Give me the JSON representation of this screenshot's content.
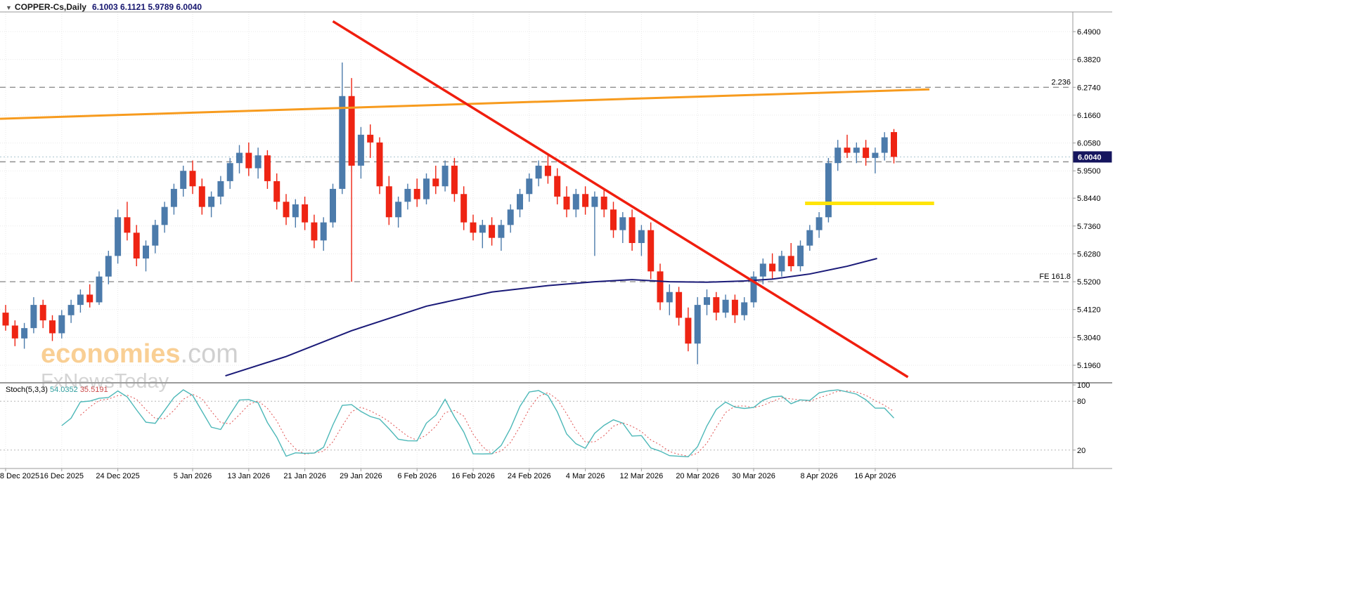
{
  "header": {
    "marker_glyph": "▼",
    "symbol_label": "COPPER-Cs,Daily",
    "ohlc_values": "6.1003 6.1121 5.9789 6.0040"
  },
  "watermark": {
    "brand": "economies",
    "brand_suffix": ".com",
    "subtitle": "FxNewsToday"
  },
  "price_axis": {
    "labels": [
      "6.4900",
      "6.3820",
      "6.2740",
      "6.1660",
      "6.0580",
      "5.9500",
      "5.8440",
      "5.7360",
      "5.6280",
      "5.5200",
      "5.4120",
      "5.3040",
      "5.1960"
    ],
    "current_price_label": "6.0040"
  },
  "indicator_axis": {
    "labels": [
      "100",
      "80",
      "20"
    ]
  },
  "annotations": {
    "fib_expansion_label": "2.236",
    "fe_level_label": "FE 161.8"
  },
  "indicator_label": {
    "name": "Stoch(5,3,3)",
    "main_value": "54.0352",
    "signal_value": "35.5191"
  },
  "colors": {
    "up": "#4c7bab",
    "down": "#ee2413",
    "trendline_red": "#f01e0e",
    "trendline_orange": "#f79b1e",
    "level_yellow": "#ffe408",
    "ma_navy": "#1a1a78",
    "stoch_main": "#4db8b8",
    "stoch_signal": "#e04f4f",
    "grid": "#e9e9e9",
    "frame": "#9a9a9a",
    "dashed_level": "#8f8f8f",
    "current_price_line": "#a9c4cf",
    "price_box_bg": "#15155e",
    "axis_text": "#000000",
    "watermark_brand": "#f5a93e",
    "watermark_gray": "#aaaaaa"
  },
  "chart_data": [
    {
      "type": "candlestick",
      "title": "COPPER-C Daily",
      "ylim": [
        5.13,
        6.57
      ],
      "grid": true,
      "current_price": 6.004,
      "y_ticks": [
        6.49,
        6.382,
        6.274,
        6.166,
        6.058,
        5.95,
        5.844,
        5.736,
        5.628,
        5.52,
        5.412,
        5.304,
        5.196
      ],
      "x_ticks": [
        {
          "index": 0,
          "label": "8 Dec 2025"
        },
        {
          "index": 6,
          "label": "16 Dec 2025"
        },
        {
          "index": 12,
          "label": "24 Dec 2025"
        },
        {
          "index": 20,
          "label": "5 Jan 2026"
        },
        {
          "index": 26,
          "label": "13 Jan 2026"
        },
        {
          "index": 32,
          "label": "21 Jan 2026"
        },
        {
          "index": 38,
          "label": "29 Jan 2026"
        },
        {
          "index": 44,
          "label": "6 Feb 2026"
        },
        {
          "index": 50,
          "label": "16 Feb 2026"
        },
        {
          "index": 56,
          "label": "24 Feb 2026"
        },
        {
          "index": 62,
          "label": "4 Mar 2026"
        },
        {
          "index": 68,
          "label": "12 Mar 2026"
        },
        {
          "index": 74,
          "label": "20 Mar 2026"
        },
        {
          "index": 80,
          "label": "30 Mar 2026"
        },
        {
          "index": 87,
          "label": "8 Apr 2026"
        },
        {
          "index": 93,
          "label": "16 Apr 2026"
        }
      ],
      "ohlc": [
        [
          5.4,
          5.43,
          5.33,
          5.35
        ],
        [
          5.35,
          5.37,
          5.27,
          5.3
        ],
        [
          5.3,
          5.36,
          5.26,
          5.34
        ],
        [
          5.34,
          5.46,
          5.32,
          5.43
        ],
        [
          5.43,
          5.45,
          5.34,
          5.37
        ],
        [
          5.37,
          5.39,
          5.29,
          5.32
        ],
        [
          5.32,
          5.41,
          5.3,
          5.39
        ],
        [
          5.39,
          5.45,
          5.36,
          5.43
        ],
        [
          5.43,
          5.49,
          5.4,
          5.47
        ],
        [
          5.47,
          5.51,
          5.42,
          5.44
        ],
        [
          5.44,
          5.56,
          5.43,
          5.54
        ],
        [
          5.54,
          5.64,
          5.51,
          5.62
        ],
        [
          5.62,
          5.8,
          5.59,
          5.77
        ],
        [
          5.77,
          5.83,
          5.68,
          5.71
        ],
        [
          5.71,
          5.74,
          5.58,
          5.61
        ],
        [
          5.61,
          5.68,
          5.56,
          5.66
        ],
        [
          5.66,
          5.76,
          5.63,
          5.74
        ],
        [
          5.74,
          5.83,
          5.71,
          5.81
        ],
        [
          5.81,
          5.9,
          5.78,
          5.88
        ],
        [
          5.88,
          5.97,
          5.85,
          5.95
        ],
        [
          5.95,
          5.99,
          5.86,
          5.89
        ],
        [
          5.89,
          5.92,
          5.78,
          5.81
        ],
        [
          5.81,
          5.87,
          5.77,
          5.85
        ],
        [
          5.85,
          5.93,
          5.82,
          5.91
        ],
        [
          5.91,
          6.0,
          5.88,
          5.98
        ],
        [
          5.98,
          6.05,
          5.94,
          6.02
        ],
        [
          6.02,
          6.06,
          5.93,
          5.96
        ],
        [
          5.96,
          6.04,
          5.92,
          6.01
        ],
        [
          6.01,
          6.03,
          5.88,
          5.91
        ],
        [
          5.91,
          5.94,
          5.8,
          5.83
        ],
        [
          5.83,
          5.86,
          5.74,
          5.77
        ],
        [
          5.77,
          5.84,
          5.73,
          5.82
        ],
        [
          5.82,
          5.85,
          5.72,
          5.75
        ],
        [
          5.75,
          5.78,
          5.65,
          5.68
        ],
        [
          5.68,
          5.77,
          5.64,
          5.75
        ],
        [
          5.75,
          5.9,
          5.73,
          5.88
        ],
        [
          5.88,
          6.37,
          5.86,
          6.24
        ],
        [
          6.24,
          6.31,
          5.52,
          5.97
        ],
        [
          5.97,
          6.12,
          5.92,
          6.09
        ],
        [
          6.09,
          6.13,
          6.0,
          6.06
        ],
        [
          6.06,
          6.08,
          5.86,
          5.89
        ],
        [
          5.89,
          5.93,
          5.74,
          5.77
        ],
        [
          5.77,
          5.85,
          5.73,
          5.83
        ],
        [
          5.83,
          5.9,
          5.8,
          5.88
        ],
        [
          5.88,
          5.92,
          5.81,
          5.84
        ],
        [
          5.84,
          5.94,
          5.82,
          5.92
        ],
        [
          5.92,
          5.97,
          5.86,
          5.89
        ],
        [
          5.89,
          5.99,
          5.87,
          5.97
        ],
        [
          5.97,
          6.0,
          5.83,
          5.86
        ],
        [
          5.86,
          5.89,
          5.72,
          5.75
        ],
        [
          5.75,
          5.78,
          5.68,
          5.71
        ],
        [
          5.71,
          5.76,
          5.65,
          5.74
        ],
        [
          5.74,
          5.77,
          5.66,
          5.69
        ],
        [
          5.69,
          5.76,
          5.64,
          5.74
        ],
        [
          5.74,
          5.82,
          5.71,
          5.8
        ],
        [
          5.8,
          5.88,
          5.77,
          5.86
        ],
        [
          5.86,
          5.94,
          5.83,
          5.92
        ],
        [
          5.92,
          5.99,
          5.89,
          5.97
        ],
        [
          5.97,
          6.01,
          5.9,
          5.93
        ],
        [
          5.93,
          5.96,
          5.82,
          5.85
        ],
        [
          5.85,
          5.89,
          5.77,
          5.8
        ],
        [
          5.8,
          5.88,
          5.77,
          5.86
        ],
        [
          5.86,
          5.89,
          5.78,
          5.81
        ],
        [
          5.81,
          5.87,
          5.62,
          5.85
        ],
        [
          5.85,
          5.88,
          5.77,
          5.8
        ],
        [
          5.8,
          5.83,
          5.69,
          5.72
        ],
        [
          5.72,
          5.79,
          5.67,
          5.77
        ],
        [
          5.77,
          5.8,
          5.64,
          5.67
        ],
        [
          5.67,
          5.74,
          5.62,
          5.72
        ],
        [
          5.72,
          5.75,
          5.53,
          5.56
        ],
        [
          5.56,
          5.59,
          5.41,
          5.44
        ],
        [
          5.44,
          5.51,
          5.39,
          5.48
        ],
        [
          5.48,
          5.5,
          5.35,
          5.38
        ],
        [
          5.38,
          5.42,
          5.25,
          5.28
        ],
        [
          5.28,
          5.46,
          5.2,
          5.43
        ],
        [
          5.43,
          5.49,
          5.39,
          5.46
        ],
        [
          5.46,
          5.48,
          5.37,
          5.4
        ],
        [
          5.4,
          5.47,
          5.38,
          5.45
        ],
        [
          5.45,
          5.47,
          5.36,
          5.39
        ],
        [
          5.39,
          5.46,
          5.37,
          5.44
        ],
        [
          5.44,
          5.56,
          5.42,
          5.54
        ],
        [
          5.54,
          5.61,
          5.51,
          5.59
        ],
        [
          5.59,
          5.63,
          5.53,
          5.56
        ],
        [
          5.56,
          5.64,
          5.54,
          5.62
        ],
        [
          5.62,
          5.67,
          5.56,
          5.58
        ],
        [
          5.58,
          5.68,
          5.56,
          5.66
        ],
        [
          5.66,
          5.74,
          5.64,
          5.72
        ],
        [
          5.72,
          5.79,
          5.69,
          5.77
        ],
        [
          5.77,
          6.0,
          5.75,
          5.98
        ],
        [
          5.98,
          6.07,
          5.95,
          6.04
        ],
        [
          6.04,
          6.09,
          6.0,
          6.02
        ],
        [
          6.02,
          6.06,
          5.98,
          6.04
        ],
        [
          6.04,
          6.07,
          5.97,
          6.0
        ],
        [
          6.0,
          6.04,
          5.94,
          6.02
        ],
        [
          6.02,
          6.1,
          5.99,
          6.08
        ],
        [
          6.1003,
          6.1121,
          5.9789,
          6.004
        ]
      ],
      "overlays": {
        "trendline_red": {
          "type": "segment",
          "points": [
            [
              35.0,
              6.53
            ],
            [
              96.5,
              5.15
            ]
          ]
        },
        "trendline_orange": {
          "type": "segment",
          "points": [
            [
              -0.6,
              6.152
            ],
            [
              98.8,
              6.266
            ]
          ]
        },
        "level_yellow": {
          "type": "segment",
          "points": [
            [
              85.5,
              5.824
            ],
            [
              99.3,
              5.824
            ]
          ]
        },
        "ma_navy": {
          "type": "polyline",
          "points": [
            [
              23.5,
              5.155
            ],
            [
              30,
              5.23
            ],
            [
              37,
              5.33
            ],
            [
              45,
              5.425
            ],
            [
              52,
              5.48
            ],
            [
              58,
              5.505
            ],
            [
              63,
              5.52
            ],
            [
              67,
              5.528
            ],
            [
              71,
              5.52
            ],
            [
              75,
              5.518
            ],
            [
              79,
              5.523
            ],
            [
              82,
              5.53
            ],
            [
              86,
              5.55
            ],
            [
              90,
              5.58
            ],
            [
              93.2,
              5.61
            ]
          ]
        },
        "levels_dashed": [
          {
            "price": 6.274,
            "label": "2.236"
          },
          {
            "price": 5.985,
            "label": ""
          },
          {
            "price": 5.52,
            "label": "FE 161.8"
          }
        ]
      }
    },
    {
      "type": "line",
      "name": "Stochastic Oscillator",
      "k_period": 5,
      "slowing": 3,
      "d_period": 3,
      "ylim": [
        0,
        100
      ],
      "levels": [
        80,
        20
      ],
      "y_ticks": [
        100,
        80,
        20
      ]
    }
  ]
}
